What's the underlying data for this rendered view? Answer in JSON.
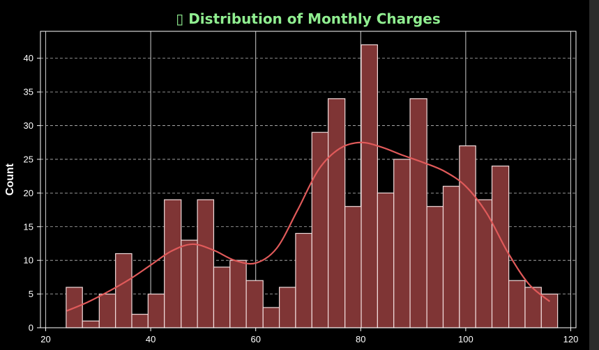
{
  "chart_data": {
    "type": "bar",
    "title": "▯ Distribution of Monthly Charges",
    "title_color": "#90ee90",
    "xlabel": "",
    "ylabel": "Count",
    "xlim": [
      19,
      121
    ],
    "ylim": [
      0,
      44
    ],
    "x_ticks": [
      20,
      40,
      60,
      80,
      100,
      120
    ],
    "y_ticks": [
      0,
      5,
      10,
      15,
      20,
      25,
      30,
      35,
      40
    ],
    "grid": {
      "x": "solid",
      "y": "dashed"
    },
    "bar_color": "#7f3535",
    "bar_edge_color": "#f2dcdc",
    "kde_color": "#e05a5a",
    "background": "#000000",
    "bins": [
      {
        "x0": 23.9,
        "x1": 27.0,
        "count": 6
      },
      {
        "x0": 27.0,
        "x1": 30.2,
        "count": 1
      },
      {
        "x0": 30.2,
        "x1": 33.3,
        "count": 5
      },
      {
        "x0": 33.3,
        "x1": 36.4,
        "count": 11
      },
      {
        "x0": 36.4,
        "x1": 39.5,
        "count": 2
      },
      {
        "x0": 39.5,
        "x1": 42.6,
        "count": 5
      },
      {
        "x0": 42.6,
        "x1": 45.8,
        "count": 19
      },
      {
        "x0": 45.8,
        "x1": 48.9,
        "count": 13
      },
      {
        "x0": 48.9,
        "x1": 52.0,
        "count": 19
      },
      {
        "x0": 52.0,
        "x1": 55.1,
        "count": 9
      },
      {
        "x0": 55.1,
        "x1": 58.2,
        "count": 10
      },
      {
        "x0": 58.2,
        "x1": 61.4,
        "count": 7
      },
      {
        "x0": 61.4,
        "x1": 64.5,
        "count": 3
      },
      {
        "x0": 64.5,
        "x1": 67.6,
        "count": 6
      },
      {
        "x0": 67.6,
        "x1": 70.7,
        "count": 14
      },
      {
        "x0": 70.7,
        "x1": 73.8,
        "count": 29
      },
      {
        "x0": 73.8,
        "x1": 77.0,
        "count": 34
      },
      {
        "x0": 77.0,
        "x1": 80.1,
        "count": 18
      },
      {
        "x0": 80.1,
        "x1": 83.2,
        "count": 42
      },
      {
        "x0": 83.2,
        "x1": 86.3,
        "count": 20
      },
      {
        "x0": 86.3,
        "x1": 89.4,
        "count": 25
      },
      {
        "x0": 89.4,
        "x1": 92.6,
        "count": 34
      },
      {
        "x0": 92.6,
        "x1": 95.7,
        "count": 18
      },
      {
        "x0": 95.7,
        "x1": 98.8,
        "count": 21
      },
      {
        "x0": 98.8,
        "x1": 101.9,
        "count": 27
      },
      {
        "x0": 101.9,
        "x1": 105.0,
        "count": 19
      },
      {
        "x0": 105.0,
        "x1": 108.2,
        "count": 24
      },
      {
        "x0": 108.2,
        "x1": 111.3,
        "count": 7
      },
      {
        "x0": 111.3,
        "x1": 114.4,
        "count": 6
      },
      {
        "x0": 114.4,
        "x1": 117.5,
        "count": 5
      }
    ],
    "kde": {
      "x": [
        24,
        28,
        32,
        36,
        40,
        44,
        48,
        52,
        56,
        60,
        64,
        68,
        72,
        76,
        80,
        84,
        88,
        92,
        96,
        100,
        104,
        108,
        112,
        116
      ],
      "y": [
        2.5,
        3.8,
        5.4,
        7.2,
        9.3,
        11.4,
        12.4,
        11.5,
        10.0,
        9.6,
        11.8,
        17.5,
        23.5,
        26.6,
        27.5,
        26.8,
        25.6,
        24.5,
        23.2,
        21.0,
        17.0,
        11.2,
        6.5,
        3.9
      ]
    }
  }
}
